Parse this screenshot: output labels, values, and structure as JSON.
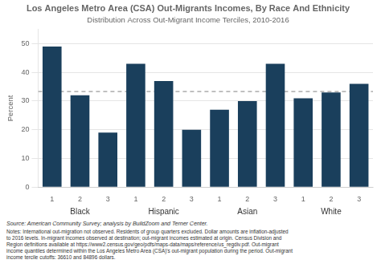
{
  "chart_data": {
    "type": "bar",
    "title": "Los Angeles Metro Area (CSA) Out-Migrants Incomes, By Race And Ethnicity",
    "subtitle": "Distribution Across Out-Migrant Income Terciles, 2010-2016",
    "ylabel": "Percent",
    "groups": [
      "Black",
      "Hispanic",
      "Asian",
      "White"
    ],
    "categories": [
      "1",
      "2",
      "3",
      "1",
      "2",
      "3",
      "1",
      "2",
      "3",
      "1",
      "2",
      "3"
    ],
    "values": [
      49,
      32,
      19,
      43,
      37,
      20,
      27,
      30,
      43,
      31,
      33,
      36
    ],
    "color": "#1a3f5c",
    "reference_line": 33.33,
    "ylim": [
      0,
      55
    ],
    "yticks": [
      0,
      10,
      20,
      30,
      40,
      50
    ],
    "grid": true,
    "source": "Source: American Community Survey; analysis by BuildZoom and Terner Center.",
    "notes": "Notes: International out-migration not observed. Residents of group quarters excluded. Dollar amounts are inflation-adjusted\nto 2016 levels. In-migrant incomes observed at destination; out-migrant incomes estimated at origin. Census Division and\nRegion definitions available at https://www2.census.gov/geo/pdfs/maps-data/maps/reference/us_regdiv.pdf. Out-migrant\nincome quantiles determined within the Los Angeles Metro Area (CSA)'s out-migrant population during the period. Out-migrant\nincome tercile cutoffs: 36610 and 84896 dollars."
  }
}
